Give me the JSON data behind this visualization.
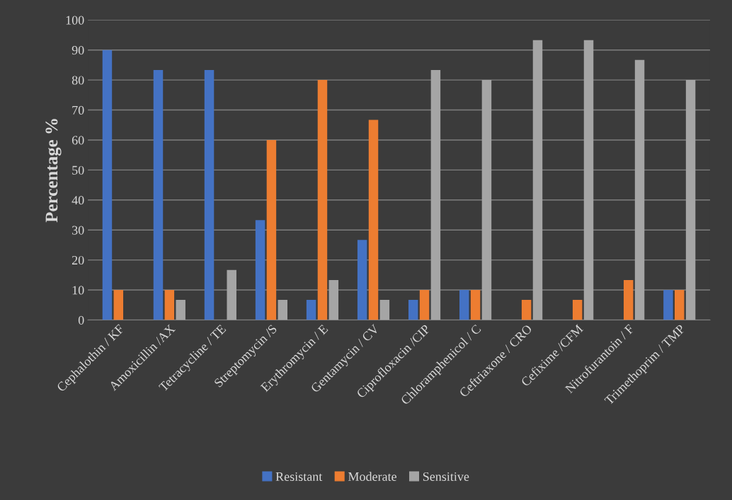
{
  "chart_data": {
    "type": "bar",
    "ylabel": "Percentage %",
    "categories": [
      "Cephalothin / KF",
      "Amoxicillin /AX",
      "Tetracycline / TE",
      "Streptomycin /S",
      "Erythromycin / E",
      "Gentamycin / CV",
      "Ciprofloxacin /CIP",
      "Chloramphenicol / C",
      "Ceftriaxone / CRO",
      "Cefixime /CFM",
      "Nitrofurantoin / F",
      "Trimethoprim / TMP"
    ],
    "series": [
      {
        "name": "Resistant",
        "color": "#4472c4",
        "values": [
          90,
          83.3,
          83.3,
          33.3,
          6.7,
          26.7,
          6.7,
          10,
          0,
          0,
          0,
          10
        ]
      },
      {
        "name": "Moderate",
        "color": "#ed7d31",
        "values": [
          10,
          10,
          0,
          60,
          80,
          66.7,
          10,
          10,
          6.7,
          6.7,
          13.3,
          10
        ]
      },
      {
        "name": "Sensitive",
        "color": "#a5a5a5",
        "values": [
          0,
          6.7,
          16.7,
          6.7,
          13.3,
          6.7,
          83.3,
          80,
          93.3,
          93.3,
          86.7,
          80
        ]
      }
    ],
    "ylim": [
      0,
      100
    ],
    "yticks": [
      0,
      10,
      20,
      30,
      40,
      50,
      60,
      70,
      80,
      90,
      100
    ],
    "grid": "y",
    "legend": "bottom"
  }
}
